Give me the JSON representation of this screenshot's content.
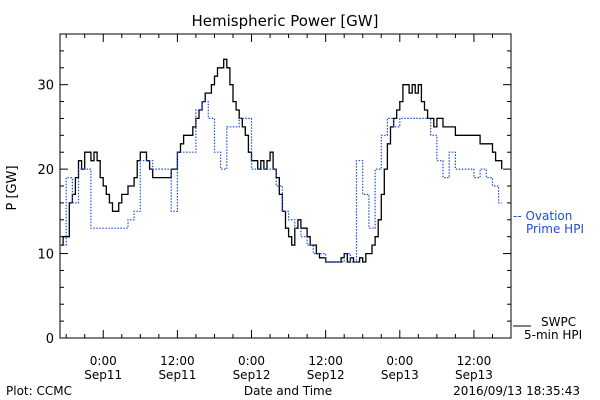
{
  "chart_data": {
    "type": "line",
    "title": "Hemispheric Power [GW]",
    "ylabel": "P [GW]",
    "xlabel": "Date and Time",
    "ylim": [
      0,
      36
    ],
    "yticks": [
      0,
      10,
      20,
      30
    ],
    "xlim_hours": [
      -7,
      66
    ],
    "x_ticks": [
      {
        "hour": 0,
        "time": "0:00",
        "date": "Sep11"
      },
      {
        "hour": 12,
        "time": "12:00",
        "date": "Sep11"
      },
      {
        "hour": 24,
        "time": "0:00",
        "date": "Sep12"
      },
      {
        "hour": 36,
        "time": "12:00",
        "date": "Sep12"
      },
      {
        "hour": 48,
        "time": "0:00",
        "date": "Sep13"
      },
      {
        "hour": 60,
        "time": "12:00",
        "date": "Sep13"
      }
    ],
    "grid": false,
    "legend_position": "right",
    "series": [
      {
        "name": "SWPC 5-min HPI",
        "style": "solid",
        "color": "#000000",
        "points": [
          [
            -7.0,
            11.0
          ],
          [
            -6.5,
            12.0
          ],
          [
            -6.0,
            12.0
          ],
          [
            -5.5,
            16.0
          ],
          [
            -5.0,
            17.0
          ],
          [
            -4.5,
            19.0
          ],
          [
            -4.0,
            21.0
          ],
          [
            -3.5,
            20.0
          ],
          [
            -3.0,
            22.0
          ],
          [
            -2.5,
            22.0
          ],
          [
            -2.0,
            21.0
          ],
          [
            -1.5,
            22.0
          ],
          [
            -1.0,
            21.0
          ],
          [
            -0.5,
            19.0
          ],
          [
            0.0,
            18.0
          ],
          [
            0.5,
            17.0
          ],
          [
            1.0,
            16.0
          ],
          [
            1.5,
            15.0
          ],
          [
            2.0,
            15.0
          ],
          [
            2.5,
            16.0
          ],
          [
            3.0,
            17.0
          ],
          [
            3.5,
            17.0
          ],
          [
            4.0,
            18.0
          ],
          [
            4.5,
            18.0
          ],
          [
            5.0,
            19.0
          ],
          [
            5.5,
            21.0
          ],
          [
            6.0,
            22.0
          ],
          [
            6.5,
            22.0
          ],
          [
            7.0,
            21.0
          ],
          [
            7.5,
            20.0
          ],
          [
            8.0,
            19.0
          ],
          [
            9.0,
            19.0
          ],
          [
            10.0,
            19.0
          ],
          [
            11.0,
            20.0
          ],
          [
            12.0,
            22.0
          ],
          [
            12.5,
            23.0
          ],
          [
            13.0,
            24.0
          ],
          [
            14.0,
            24.0
          ],
          [
            14.5,
            25.0
          ],
          [
            15.0,
            26.0
          ],
          [
            15.5,
            27.0
          ],
          [
            16.0,
            28.0
          ],
          [
            16.5,
            29.0
          ],
          [
            17.0,
            29.0
          ],
          [
            17.5,
            30.0
          ],
          [
            18.0,
            31.0
          ],
          [
            18.5,
            32.0
          ],
          [
            19.0,
            32.0
          ],
          [
            19.5,
            33.0
          ],
          [
            20.0,
            32.0
          ],
          [
            20.5,
            30.0
          ],
          [
            21.0,
            28.0
          ],
          [
            21.5,
            27.0
          ],
          [
            22.0,
            26.0
          ],
          [
            22.5,
            25.0
          ],
          [
            23.0,
            24.0
          ],
          [
            23.5,
            22.0
          ],
          [
            24.0,
            21.0
          ],
          [
            24.5,
            21.0
          ],
          [
            25.0,
            20.0
          ],
          [
            25.5,
            21.0
          ],
          [
            26.0,
            20.0
          ],
          [
            26.5,
            21.0
          ],
          [
            27.0,
            22.0
          ],
          [
            27.5,
            20.0
          ],
          [
            28.0,
            19.0
          ],
          [
            28.5,
            17.0
          ],
          [
            29.0,
            15.0
          ],
          [
            29.5,
            13.0
          ],
          [
            30.0,
            12.0
          ],
          [
            30.5,
            11.0
          ],
          [
            31.0,
            13.0
          ],
          [
            31.5,
            14.0
          ],
          [
            32.0,
            13.0
          ],
          [
            32.5,
            13.0
          ],
          [
            33.0,
            12.0
          ],
          [
            33.5,
            11.0
          ],
          [
            34.0,
            11.0
          ],
          [
            34.5,
            10.0
          ],
          [
            35.0,
            9.5
          ],
          [
            35.5,
            9.5
          ],
          [
            36.0,
            9.0
          ],
          [
            37.0,
            9.0
          ],
          [
            38.0,
            9.0
          ],
          [
            38.5,
            9.5
          ],
          [
            39.0,
            10.0
          ],
          [
            39.5,
            9.0
          ],
          [
            40.0,
            9.5
          ],
          [
            40.5,
            9.0
          ],
          [
            41.0,
            9.0
          ],
          [
            41.5,
            9.5
          ],
          [
            42.0,
            9.0
          ],
          [
            42.5,
            10.0
          ],
          [
            43.0,
            10.0
          ],
          [
            43.5,
            11.0
          ],
          [
            44.0,
            12.0
          ],
          [
            44.5,
            14.0
          ],
          [
            45.0,
            17.0
          ],
          [
            45.5,
            20.0
          ],
          [
            46.0,
            23.0
          ],
          [
            46.5,
            25.0
          ],
          [
            47.0,
            26.0
          ],
          [
            47.5,
            27.0
          ],
          [
            48.0,
            28.0
          ],
          [
            48.5,
            30.0
          ],
          [
            49.0,
            30.0
          ],
          [
            49.5,
            29.0
          ],
          [
            50.0,
            30.0
          ],
          [
            50.5,
            29.0
          ],
          [
            51.0,
            30.0
          ],
          [
            51.5,
            28.0
          ],
          [
            52.0,
            27.0
          ],
          [
            52.5,
            26.0
          ],
          [
            53.0,
            26.0
          ],
          [
            53.5,
            25.0
          ],
          [
            54.0,
            26.0
          ],
          [
            55.0,
            25.0
          ],
          [
            56.0,
            25.0
          ],
          [
            57.0,
            24.0
          ],
          [
            58.0,
            24.0
          ],
          [
            59.0,
            24.0
          ],
          [
            60.0,
            24.0
          ],
          [
            61.0,
            23.0
          ],
          [
            62.0,
            23.0
          ],
          [
            63.0,
            22.0
          ],
          [
            63.5,
            21.0
          ],
          [
            64.0,
            21.0
          ],
          [
            64.5,
            20.0
          ]
        ]
      },
      {
        "name": "Ovation Prime HPI",
        "style": "dotted",
        "color": "#1f4fd8",
        "points": [
          [
            -7.0,
            11.0
          ],
          [
            -6.0,
            19.0
          ],
          [
            -5.0,
            16.0
          ],
          [
            -4.0,
            20.0
          ],
          [
            -3.0,
            20.0
          ],
          [
            -2.0,
            13.0
          ],
          [
            -1.0,
            13.0
          ],
          [
            0.0,
            13.0
          ],
          [
            1.0,
            13.0
          ],
          [
            2.0,
            13.0
          ],
          [
            3.0,
            13.0
          ],
          [
            4.0,
            14.0
          ],
          [
            5.0,
            15.0
          ],
          [
            6.0,
            21.0
          ],
          [
            7.0,
            21.0
          ],
          [
            8.0,
            20.0
          ],
          [
            9.0,
            20.0
          ],
          [
            10.0,
            20.0
          ],
          [
            11.0,
            15.0
          ],
          [
            12.0,
            22.0
          ],
          [
            13.0,
            22.0
          ],
          [
            14.0,
            22.0
          ],
          [
            15.0,
            27.0
          ],
          [
            16.0,
            28.0
          ],
          [
            17.0,
            26.0
          ],
          [
            18.0,
            22.0
          ],
          [
            19.0,
            20.0
          ],
          [
            20.0,
            25.0
          ],
          [
            21.0,
            25.0
          ],
          [
            22.0,
            26.0
          ],
          [
            23.0,
            26.0
          ],
          [
            24.0,
            20.0
          ],
          [
            25.0,
            20.0
          ],
          [
            26.0,
            20.0
          ],
          [
            27.0,
            20.0
          ],
          [
            28.0,
            18.0
          ],
          [
            29.0,
            15.0
          ],
          [
            30.0,
            14.0
          ],
          [
            31.0,
            13.0
          ],
          [
            32.0,
            12.0
          ],
          [
            33.0,
            11.0
          ],
          [
            34.0,
            10.0
          ],
          [
            35.0,
            10.0
          ],
          [
            36.0,
            9.0
          ],
          [
            37.0,
            9.0
          ],
          [
            38.0,
            9.0
          ],
          [
            39.0,
            10.0
          ],
          [
            40.0,
            9.0
          ],
          [
            41.0,
            21.0
          ],
          [
            42.0,
            17.0
          ],
          [
            43.0,
            13.0
          ],
          [
            44.0,
            20.0
          ],
          [
            45.0,
            24.0
          ],
          [
            46.0,
            26.0
          ],
          [
            47.0,
            25.0
          ],
          [
            48.0,
            26.0
          ],
          [
            49.0,
            26.0
          ],
          [
            50.0,
            26.0
          ],
          [
            51.0,
            26.0
          ],
          [
            52.0,
            26.0
          ],
          [
            53.0,
            24.0
          ],
          [
            54.0,
            21.0
          ],
          [
            55.0,
            19.0
          ],
          [
            56.0,
            22.0
          ],
          [
            57.0,
            20.0
          ],
          [
            58.0,
            20.0
          ],
          [
            59.0,
            20.0
          ],
          [
            60.0,
            19.0
          ],
          [
            61.0,
            20.0
          ],
          [
            62.0,
            19.0
          ],
          [
            63.0,
            18.0
          ],
          [
            64.0,
            16.0
          ],
          [
            64.5,
            16.0
          ]
        ]
      }
    ]
  },
  "legend": {
    "ovation_line1": "-- Ovation",
    "ovation_line2": "Prime HPI",
    "swpc_line1": "SWPC",
    "swpc_line2": "5-min HPI"
  },
  "footer": {
    "credit": "Plot: CCMC",
    "timestamp": "2016/09/13 18:35:43"
  },
  "colors": {
    "axis": "#000000",
    "ovation": "#1f4fd8",
    "swpc": "#000000"
  }
}
